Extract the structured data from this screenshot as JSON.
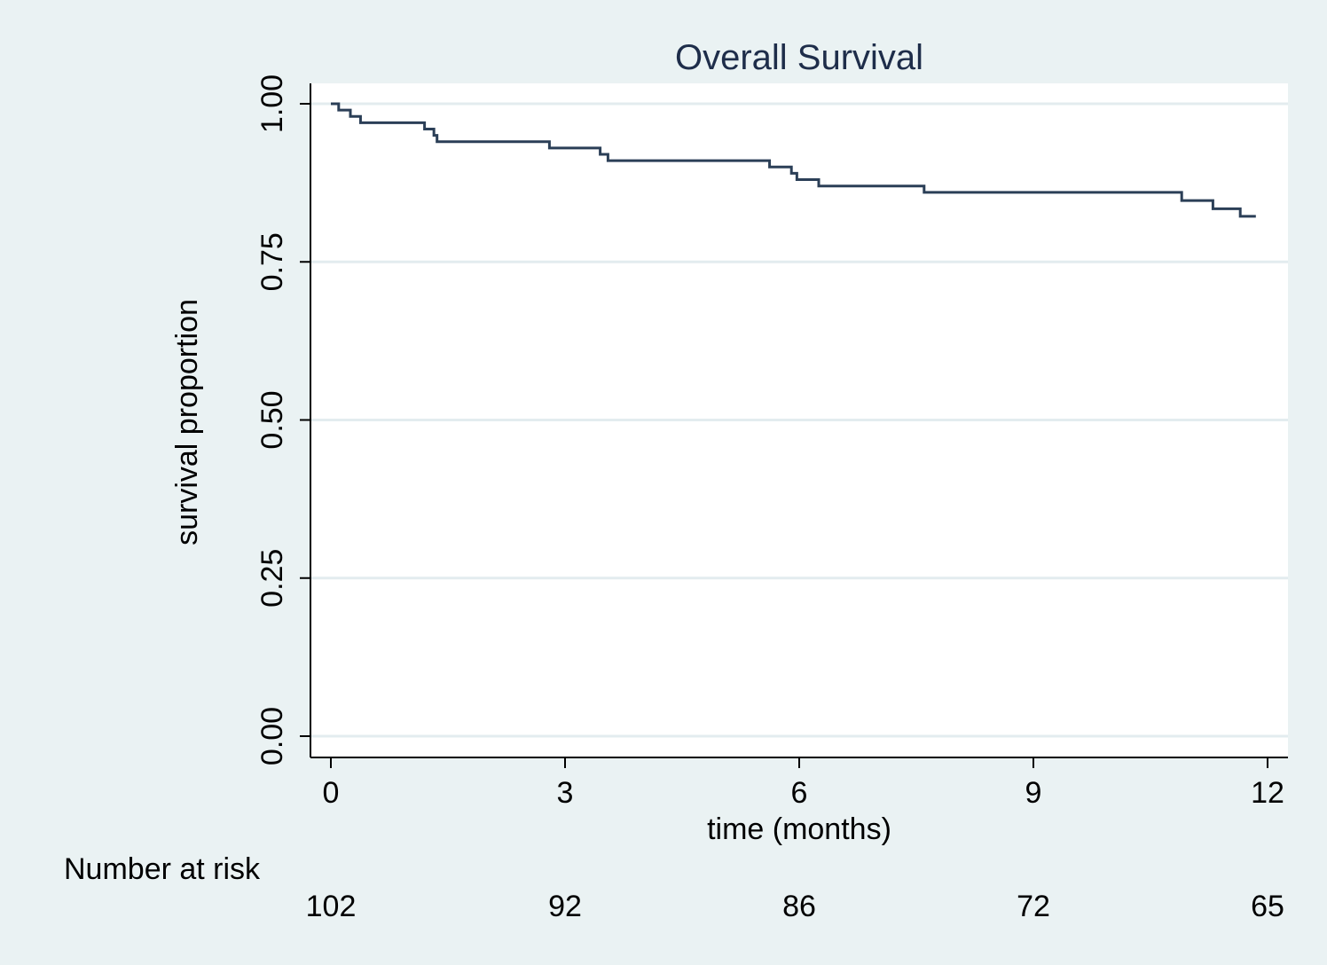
{
  "chart_data": {
    "type": "line",
    "title": "Overall Survival",
    "xlabel": "time (months)",
    "ylabel": "survival proportion",
    "xlim": [
      0,
      12
    ],
    "ylim": [
      0,
      1
    ],
    "x_ticks": [
      "0",
      "3",
      "6",
      "9",
      "12"
    ],
    "y_ticks": [
      "0.00",
      "0.25",
      "0.50",
      "0.75",
      "1.00"
    ],
    "grid": true,
    "line_color": "#2b3f57",
    "series": [
      {
        "step": true,
        "x": [
          0,
          0.1,
          0.25,
          0.38,
          1.2,
          1.32,
          1.36,
          2.8,
          3.45,
          3.55,
          5.62,
          5.9,
          5.97,
          6.25,
          7.6,
          10.9,
          11.3,
          11.65,
          11.85
        ],
        "y": [
          1.0,
          0.99,
          0.98,
          0.97,
          0.96,
          0.95,
          0.94,
          0.93,
          0.92,
          0.91,
          0.9,
          0.89,
          0.88,
          0.87,
          0.86,
          0.847,
          0.834,
          0.822,
          0.822
        ]
      }
    ],
    "risk_table": {
      "label": "Number at risk",
      "times": [
        0,
        3,
        6,
        9,
        12
      ],
      "values": [
        "102",
        "92",
        "86",
        "72",
        "65"
      ]
    }
  }
}
